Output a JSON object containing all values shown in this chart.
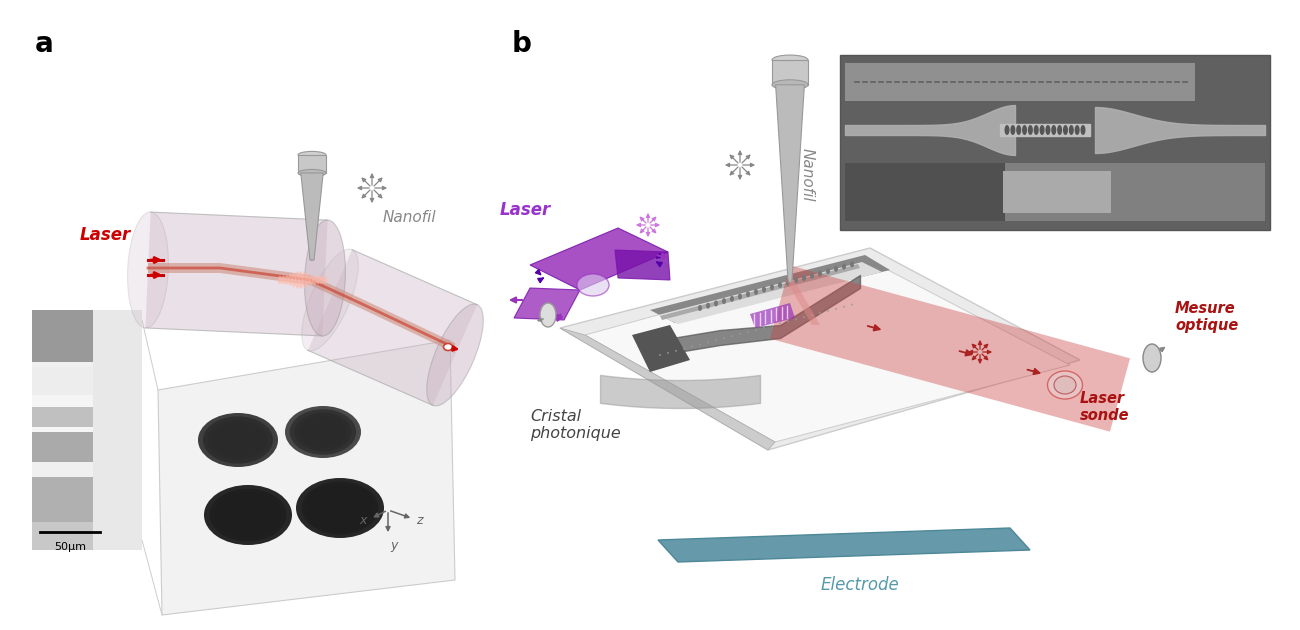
{
  "panel_a_label": "a",
  "panel_b_label": "b",
  "label_fontsize": 20,
  "label_fontweight": "bold",
  "background_color": "#ffffff",
  "text_laser_a": "Laser",
  "text_laser_a_color": "#cc0000",
  "text_nanofil_a": "Nanofil",
  "text_nanofil_color": "#888888",
  "text_laser_b": "Laser",
  "text_laser_b_color": "#9933cc",
  "text_nanofil_b": "Nanofil",
  "text_cristal": "Cristal\nphotonique",
  "text_cristal_color": "#444444",
  "text_mesure": "Mesure\noptique",
  "text_mesure_color": "#aa1111",
  "text_laser_sonde": "Laser\nsonde",
  "text_laser_sonde_color": "#aa1111",
  "text_electrode": "Electrode",
  "text_electrode_color": "#5599aa",
  "text_50um": "50μm",
  "cyl_color": "#c8b0c0",
  "beam_color": "#cc6655",
  "purple_color": "#9933bb",
  "red_beam_color": "#cc4444",
  "teal_color": "#6699aa"
}
